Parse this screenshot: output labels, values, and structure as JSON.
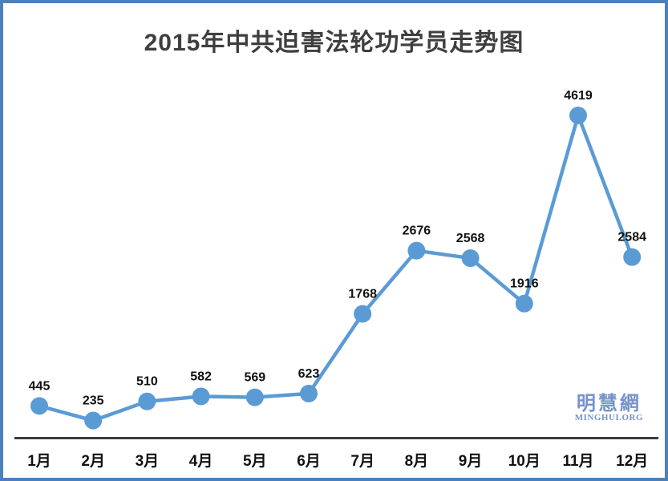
{
  "page": {
    "title": "2015年中共迫害法轮功学员走势图"
  },
  "watermark": {
    "cn": "明慧網",
    "en": "MINGHUI.ORG"
  },
  "colors": {
    "frame": "#4C80BD",
    "line": "#5B9BD5",
    "marker": "#5B9BD5",
    "axis": "#3B3B3B",
    "title_text": "#3F3F3F",
    "label_text": "#111111",
    "watermark_text": "#7592CC"
  },
  "chart_data": {
    "type": "line",
    "title": "2015年中共迫害法轮功学员走势图",
    "categories": [
      "1月",
      "2月",
      "3月",
      "4月",
      "5月",
      "6月",
      "7月",
      "8月",
      "9月",
      "10月",
      "11月",
      "12月"
    ],
    "values": [
      445,
      235,
      510,
      582,
      569,
      623,
      1768,
      2676,
      2568,
      1916,
      4619,
      2584
    ],
    "xlabel": "",
    "ylabel": "",
    "ylim": [
      0,
      4800
    ],
    "grid": false,
    "legend": null,
    "data_labels": true,
    "marker": "circle",
    "x_axis_line": true,
    "y_axis_line": false
  }
}
